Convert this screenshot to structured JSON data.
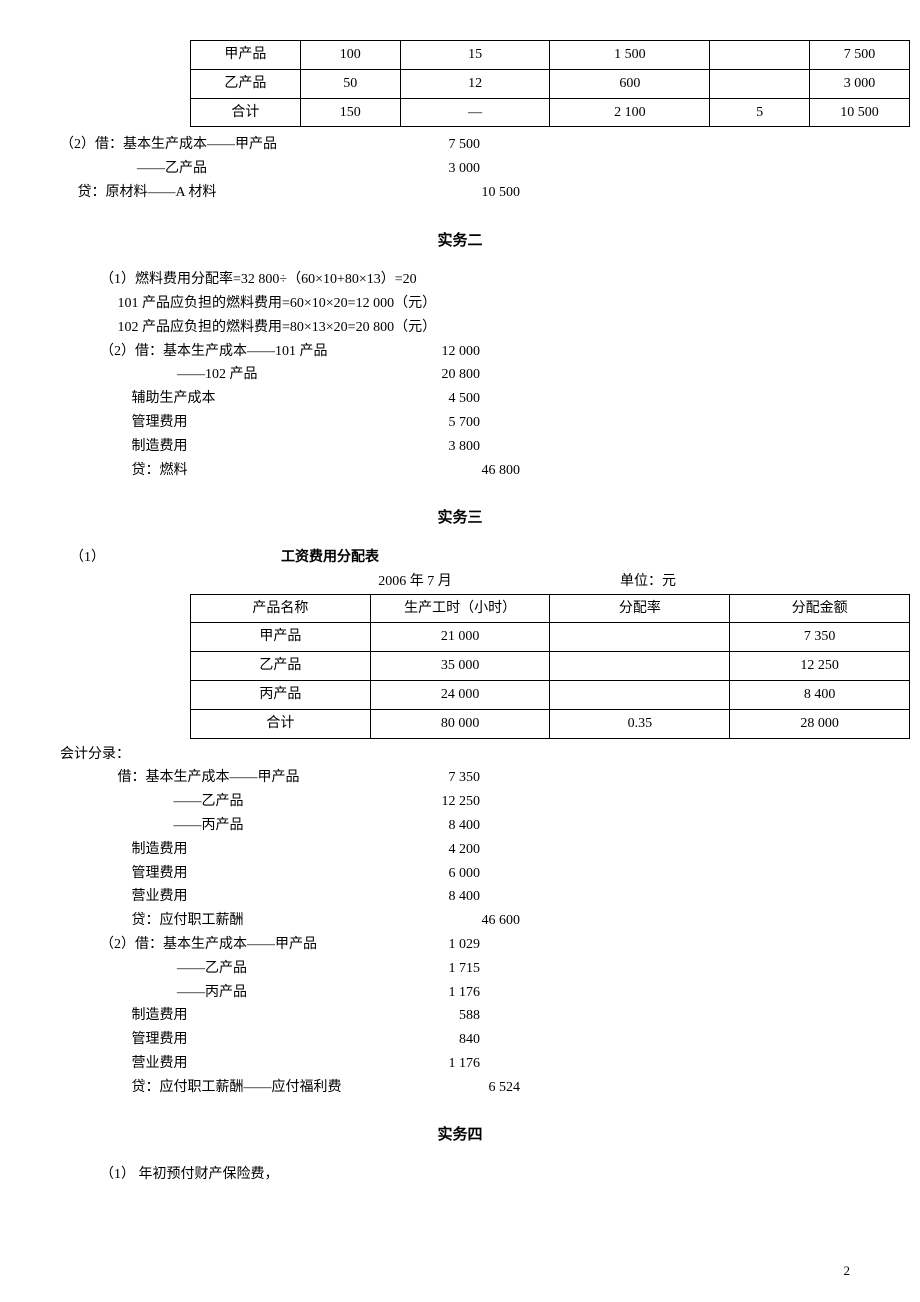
{
  "table1": {
    "rows": [
      [
        "甲产品",
        "100",
        "15",
        "1 500",
        "",
        "7 500"
      ],
      [
        "乙产品",
        "50",
        "12",
        "600",
        "",
        "3 000"
      ],
      [
        "合计",
        "150",
        "—",
        "2 100",
        "5",
        "10 500"
      ]
    ]
  },
  "block1": {
    "prefix": "（2）借：基本生产成本——甲产品",
    "lines": [
      {
        "label": "（2）借：基本生产成本——甲产品",
        "val": "7 500",
        "cls": "indent0",
        "vcls": "entry-val"
      },
      {
        "label": "                      ——乙产品",
        "val": "3 000",
        "cls": "indent0",
        "vcls": "entry-val"
      },
      {
        "label": "     贷：原材料——A 材料",
        "val": "10 500",
        "cls": "indent0",
        "vcls": "entry-val-w"
      }
    ]
  },
  "sec2_title": "实务二",
  "sec2_text": [
    "（1）燃料费用分配率=32 800÷（60×10+80×13）=20",
    "     101 产品应负担的燃料费用=60×10×20=12 000（元）",
    "     102 产品应负担的燃料费用=80×13×20=20 800（元）"
  ],
  "block2": [
    {
      "label": "（2）借：基本生产成本——101 产品",
      "val": "12 000",
      "vcls": "entry-val"
    },
    {
      "label": "                      ——102 产品",
      "val": "20 800",
      "vcls": "entry-val"
    },
    {
      "label": "         辅助生产成本",
      "val": "4 500",
      "vcls": "entry-val"
    },
    {
      "label": "         管理费用",
      "val": "5 700",
      "vcls": "entry-val"
    },
    {
      "label": "         制造费用",
      "val": "3 800",
      "vcls": "entry-val"
    },
    {
      "label": "         贷：燃料",
      "val": "46 800",
      "vcls": "entry-val-w"
    }
  ],
  "sec3_title": "实务三",
  "sec3_prefix": "（1）",
  "table2": {
    "title": "工资费用分配表",
    "subtitle_left": "2006 年 7 月",
    "subtitle_right": "单位：元",
    "headers": [
      "产品名称",
      "生产工时（小时）",
      "分配率",
      "分配金额"
    ],
    "rows": [
      [
        "甲产品",
        "21 000",
        "",
        "7 350"
      ],
      [
        "乙产品",
        "35 000",
        "",
        "12 250"
      ],
      [
        "丙产品",
        "24 000",
        "",
        "8 400"
      ],
      [
        "合计",
        "80 000",
        "0.35",
        "28 000"
      ]
    ]
  },
  "sec3_label": "会计分录：",
  "block3": [
    {
      "label": "     借：基本生产成本——甲产品",
      "val": "7 350",
      "vcls": "entry-val"
    },
    {
      "label": "                     ——乙产品",
      "val": "12 250",
      "vcls": "entry-val"
    },
    {
      "label": "                     ——丙产品",
      "val": "8 400",
      "vcls": "entry-val"
    },
    {
      "label": "         制造费用",
      "val": "4 200",
      "vcls": "entry-val"
    },
    {
      "label": "         管理费用",
      "val": "6 000",
      "vcls": "entry-val"
    },
    {
      "label": "         营业费用",
      "val": "8 400",
      "vcls": "entry-val"
    },
    {
      "label": "         贷：应付职工薪酬",
      "val": "46 600",
      "vcls": "entry-val-w"
    }
  ],
  "block4": [
    {
      "label": "（2）借：基本生产成本——甲产品",
      "val": "1 029",
      "vcls": "entry-val"
    },
    {
      "label": "                      ——乙产品",
      "val": "1 715",
      "vcls": "entry-val"
    },
    {
      "label": "                      ——丙产品",
      "val": "1 176",
      "vcls": "entry-val"
    },
    {
      "label": "         制造费用",
      "val": "588",
      "vcls": "entry-val"
    },
    {
      "label": "         管理费用",
      "val": "840",
      "vcls": "entry-val"
    },
    {
      "label": "         营业费用",
      "val": "1 176",
      "vcls": "entry-val"
    },
    {
      "label": "         贷：应付职工薪酬——应付福利费",
      "val": "6 524",
      "vcls": "entry-val-w"
    }
  ],
  "sec4_title": "实务四",
  "sec4_text": "（1）    年初预付财产保险费，",
  "page": "2"
}
